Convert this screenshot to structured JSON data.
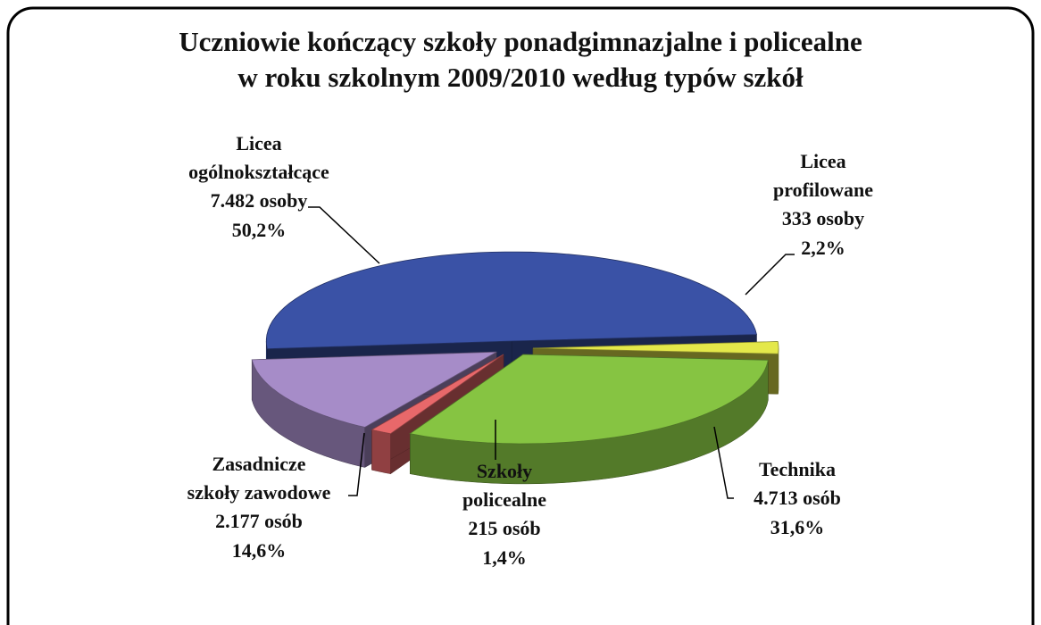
{
  "chart_data": {
    "type": "pie3d",
    "title": [
      "Uczniowie kończący szkoły ponadgimnazjalne i policealne",
      "w roku szkolnym 2009/2010 według typów szkół"
    ],
    "categories": [
      [
        "Licea",
        "ogólnokształcące"
      ],
      [
        "Licea",
        "profilowane"
      ],
      [
        "Technika"
      ],
      [
        "Szkoły",
        "policealne"
      ],
      [
        "Zasadnicze",
        "szkoły zawodowe"
      ]
    ],
    "count_labels": [
      "7.482 osoby",
      "333 osoby",
      "4.713 osób",
      "215 osób",
      "2.177 osób"
    ],
    "values": [
      50.2,
      2.2,
      31.6,
      1.4,
      14.6
    ],
    "value_labels": [
      "50,2%",
      "2,2%",
      "31,6%",
      "1,4%",
      "14,6%"
    ],
    "colors": [
      "#3a52a6",
      "#e4e84a",
      "#86c442",
      "#e8686a",
      "#a68cc8"
    ]
  }
}
